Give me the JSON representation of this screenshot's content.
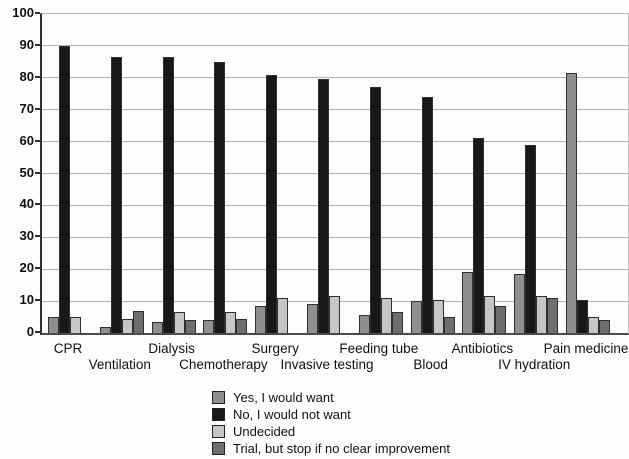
{
  "chart_data": {
    "type": "bar",
    "title": "",
    "xlabel": "",
    "ylabel": "",
    "categories": [
      "CPR",
      "Ventilation",
      "Dialysis",
      "Chemotherapy",
      "Surgery",
      "Invasive testing",
      "Feeding tube",
      "Blood",
      "Antibiotics",
      "IV hydration",
      "Pain medicine"
    ],
    "series": [
      {
        "name": "Yes, I would want",
        "color": "#8f8f8f",
        "values": [
          5,
          2,
          3.5,
          4,
          8.5,
          9,
          5.5,
          10,
          19,
          18.5,
          81.5
        ]
      },
      {
        "name": "No, I would not want",
        "color": "#181818",
        "values": [
          90,
          86.5,
          86.5,
          85,
          81,
          79.5,
          77,
          74,
          61,
          59,
          10.5
        ]
      },
      {
        "name": "Undecided",
        "color": "#c6c6c6",
        "values": [
          5,
          4.5,
          6.5,
          6.5,
          11,
          11.5,
          11,
          10.5,
          11.5,
          11.5,
          5
        ]
      },
      {
        "name": "Trial, but stop if no clear improvement",
        "color": "#6e6e6e",
        "values": [
          0,
          7,
          4,
          4.5,
          0,
          0,
          6.5,
          5,
          8.5,
          11,
          4
        ]
      }
    ],
    "ylim": [
      0,
      100
    ],
    "ytick_interval": 10,
    "ytick_labels": [
      "0",
      "10",
      "20",
      "30",
      "40",
      "50",
      "60",
      "70",
      "80",
      "90",
      "100"
    ],
    "grid": "horizontal",
    "gridline_color": "#b3b3b3",
    "legend_position": "bottom-center",
    "x_label_rows": "staggered-two-rows"
  }
}
